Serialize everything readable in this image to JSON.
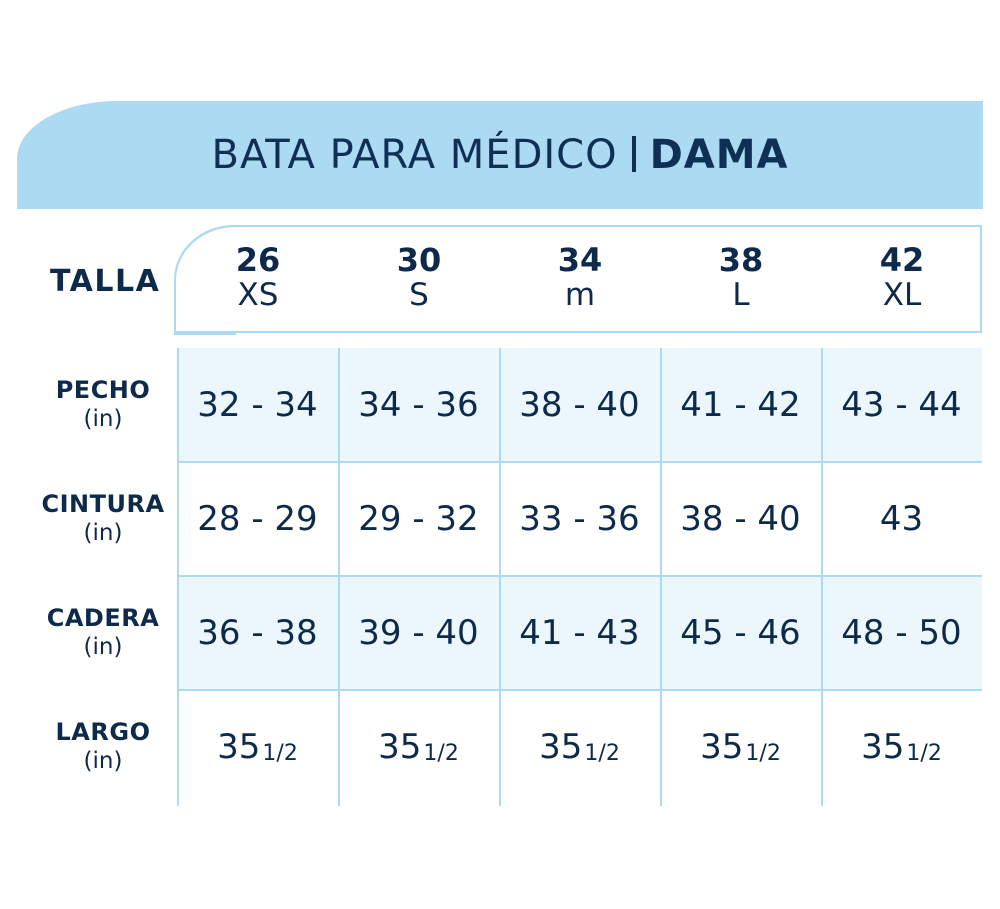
{
  "title": {
    "main": "BATA PARA MÉDICO",
    "emphasis": "DAMA"
  },
  "talla_label": "TALLA",
  "sizes": [
    {
      "num": "26",
      "code": "XS"
    },
    {
      "num": "30",
      "code": "S"
    },
    {
      "num": "34",
      "code": "M"
    },
    {
      "num": "38",
      "code": "L"
    },
    {
      "num": "42",
      "code": "XL"
    }
  ],
  "rows": [
    {
      "name": "PECHO",
      "unit": "(in)",
      "values": [
        "32 - 34",
        "34 - 36",
        "38 - 40",
        "41 - 42",
        "43 - 44"
      ]
    },
    {
      "name": "CINTURA",
      "unit": "(in)",
      "values": [
        "28 - 29",
        "29 - 32",
        "33 - 36",
        "38 - 40",
        "43"
      ]
    },
    {
      "name": "CADERA",
      "unit": "(in)",
      "values": [
        "36 - 38",
        "39 - 40",
        "41 - 43",
        "45 - 46",
        "48 - 50"
      ]
    },
    {
      "name": "LARGO",
      "unit": "(in)",
      "values": [
        "35",
        "35",
        "35",
        "35",
        "35"
      ],
      "fraction": "1/2"
    }
  ],
  "colors": {
    "accent": "#acdaf3",
    "band": "#ecf7fd",
    "text": "#0d2a4a"
  },
  "chart_data": {
    "type": "table",
    "title": "BATA PARA MÉDICO | DAMA",
    "columns": [
      "26 XS",
      "30 S",
      "34 M",
      "38 L",
      "42 XL"
    ],
    "rows": [
      {
        "label": "PECHO (in)",
        "values": [
          "32 - 34",
          "34 - 36",
          "38 - 40",
          "41 - 42",
          "43 - 44"
        ]
      },
      {
        "label": "CINTURA (in)",
        "values": [
          "28 - 29",
          "29 - 32",
          "33 - 36",
          "38 - 40",
          "43"
        ]
      },
      {
        "label": "CADERA (in)",
        "values": [
          "36 - 38",
          "39 - 40",
          "41 - 43",
          "45 - 46",
          "48 - 50"
        ]
      },
      {
        "label": "LARGO (in)",
        "values": [
          "35 1/2",
          "35 1/2",
          "35 1/2",
          "35 1/2",
          "35 1/2"
        ]
      }
    ]
  }
}
